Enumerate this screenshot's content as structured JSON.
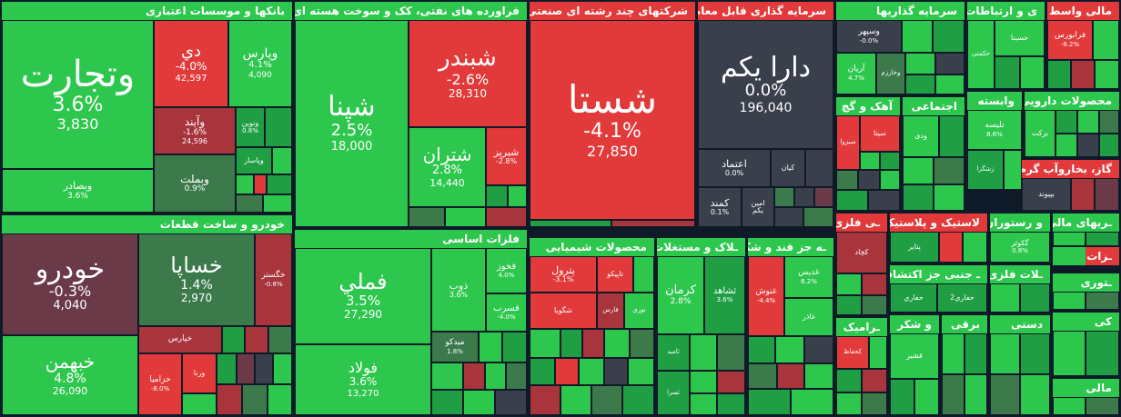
{
  "colors": {
    "up": "#2ec74e",
    "up_dark": "#1f9e43",
    "up_muted": "#3c7a4c",
    "down": "#e23a3a",
    "down_dark": "#a8343c",
    "down_muted": "#6b3a48",
    "neutral": "#3a3f4c",
    "border": "#0e1a28"
  },
  "sectors": {
    "banks": {
      "title": "بانکها و موسسات اعتباری"
    },
    "oil": {
      "title": "فراورده های نفتی، کک و سوخت هسته ای"
    },
    "multi": {
      "title": "شرکتهای چند رشته ای صنعتی"
    },
    "invest_trade": {
      "title": "سرمایه گذاری قابل معامله"
    },
    "investments": {
      "title": "سرمایه گذاریها"
    },
    "telecom": {
      "title": "ی و ارتباطات"
    },
    "finance": {
      "title": "مالی واسط"
    },
    "auto": {
      "title": "خودرو و ساخت قطعات"
    },
    "metals": {
      "title": "فلزات اساسی"
    },
    "chemicals": {
      "title": "محصولات شیمیایی"
    },
    "mining": {
      "title": "ـلاک و مستغلات"
    },
    "sugar": {
      "title": "ـه جز قند و شکر"
    },
    "pharma": {
      "title": "محصولات دارویی"
    },
    "iron": {
      "title": "آهک و گچ"
    },
    "social": {
      "title": "اجتماعی"
    },
    "supply": {
      "title": "وابسته"
    },
    "gas": {
      "title": "گاز، بخاروآب گرم"
    },
    "nonmetal": {
      "title": "ـی فلزی"
    },
    "plastic": {
      "title": "لاستیک و پلاستیک"
    },
    "restaurant": {
      "title": "و رستوران"
    },
    "fin2": {
      "title": "ـریهای مالی"
    },
    "ceramic": {
      "title": "ـرامیک"
    },
    "agri": {
      "title": "و شکر"
    },
    "other_jz": {
      "title": "ـ جنبی جز اکتشاف"
    },
    "fazi": {
      "title": "ـلات فلزی"
    },
    "barqi": {
      "title": "برقی"
    },
    "computers": {
      "title": "ـتوری"
    },
    "dasti": {
      "title": "دستی"
    },
    "zat": {
      "title": "ـزات"
    },
    "an": {
      "title": "آن"
    },
    "ki": {
      "title": "کی"
    },
    "mali": {
      "title": "مالی"
    }
  },
  "tiles": {
    "vtejarat": {
      "symbol": "وتجارت",
      "change": "3.6%",
      "value": "3,830"
    },
    "di": {
      "symbol": "دي",
      "change": "-4.0%",
      "value": "42,597"
    },
    "vpars": {
      "symbol": "وپارس",
      "change": "4.1%",
      "value": "4,090"
    },
    "vaind": {
      "symbol": "وآيند",
      "change": "-1.6%",
      "value": "24,596"
    },
    "vnovin": {
      "symbol": "ونوين",
      "change": "0.8%"
    },
    "vbsader": {
      "symbol": "وبصادر",
      "change": "3.6%"
    },
    "vbmellat": {
      "symbol": "وبملت",
      "change": "0.9%"
    },
    "vpasar": {
      "symbol": "وپاسار"
    },
    "shepna": {
      "symbol": "شپنا",
      "change": "2.5%",
      "value": "18,000"
    },
    "shbandar": {
      "symbol": "شبندر",
      "change": "-2.6%",
      "value": "28,310"
    },
    "shtran": {
      "symbol": "شتران",
      "change": "2.8%",
      "value": "14,440"
    },
    "shabriz": {
      "symbol": "شبريز",
      "change": "-2.8%"
    },
    "shasta": {
      "symbol": "شستا",
      "change": "-4.1%",
      "value": "27,850"
    },
    "darayekom": {
      "symbol": "دارا يكم",
      "change": "0.0%",
      "value": "196,040"
    },
    "etemad": {
      "symbol": "اعتماد",
      "change": "0.0%"
    },
    "kian": {
      "symbol": "کیان"
    },
    "kamand": {
      "symbol": "كمند",
      "change": "0.1%"
    },
    "amin": {
      "symbol": "امين يكم"
    },
    "vsepehr": {
      "symbol": "وسپهر",
      "change": "-0.0%"
    },
    "arian": {
      "symbol": "آريان",
      "change": "4.7%"
    },
    "vkharazm": {
      "symbol": "وخارزم"
    },
    "hasina": {
      "symbol": "حسينا"
    },
    "hekmati": {
      "symbol": "حکمتی"
    },
    "faraborse": {
      "symbol": "فرابورس",
      "change": "-8.2%"
    },
    "khodro": {
      "symbol": "خودرو",
      "change": "-0.3%",
      "value": "4,040"
    },
    "khsapa": {
      "symbol": "خساپا",
      "change": "1.4%",
      "value": "2,970"
    },
    "khgostar": {
      "symbol": "خگستر",
      "change": "-0.8%"
    },
    "khbahman": {
      "symbol": "خبهمن",
      "change": "4.8%",
      "value": "26,090"
    },
    "khepars": {
      "symbol": "خپارس"
    },
    "khzamia": {
      "symbol": "خزاميا",
      "change": "-8.0%"
    },
    "vrena": {
      "symbol": "ورنا"
    },
    "femeli": {
      "symbol": "فملي",
      "change": "3.5%",
      "value": "27,290"
    },
    "fooulad": {
      "symbol": "فولاد",
      "change": "3.6%",
      "value": "13,270"
    },
    "zob": {
      "symbol": "ذوب",
      "change": "3.6%"
    },
    "fakhooz": {
      "symbol": "فخوز",
      "change": "4.0%"
    },
    "fasrab": {
      "symbol": "فسرب",
      "change": "-4.0%"
    },
    "midco": {
      "symbol": "ميدكو",
      "change": "1.8%"
    },
    "petrol": {
      "symbol": "پترول",
      "change": "-3.1%"
    },
    "tapiko": {
      "symbol": "تاپيكو"
    },
    "shegoya": {
      "symbol": "شگويا"
    },
    "fars": {
      "symbol": "فارس"
    },
    "noori": {
      "symbol": "نوري"
    },
    "kerman": {
      "symbol": "كرمان",
      "change": "2.8%"
    },
    "shahed": {
      "symbol": "ثشاهد",
      "change": "3.6%"
    },
    "tamid": {
      "symbol": "ثامید"
    },
    "tasra": {
      "symbol": "ثسرا"
    },
    "ghadis": {
      "symbol": "غديس",
      "change": "6.2%"
    },
    "ghnoosh": {
      "symbol": "غنوش",
      "change": "-4.4%"
    },
    "ghazar": {
      "symbol": "غاذر"
    },
    "sita": {
      "symbol": "سیتا"
    },
    "sizva": {
      "symbol": "سیزوا"
    },
    "vodi": {
      "symbol": "ودی"
    },
    "telise": {
      "symbol": "تليسه",
      "change": "8.6%"
    },
    "zagra": {
      "symbol": "زشگزا"
    },
    "barakat": {
      "symbol": "بركت"
    },
    "bipvand": {
      "symbol": "بپيوند"
    },
    "kehad": {
      "symbol": "کچاد"
    },
    "ptayer": {
      "symbol": "پتاير"
    },
    "gkoosar": {
      "symbol": "گكوثر",
      "change": "0.8%"
    },
    "hafari": {
      "symbol": "حفاري"
    },
    "hafari2": {
      "symbol": "حفاري2"
    },
    "khafaf": {
      "symbol": "كحفاظ"
    },
    "ghashir": {
      "symbol": "قشير"
    }
  }
}
